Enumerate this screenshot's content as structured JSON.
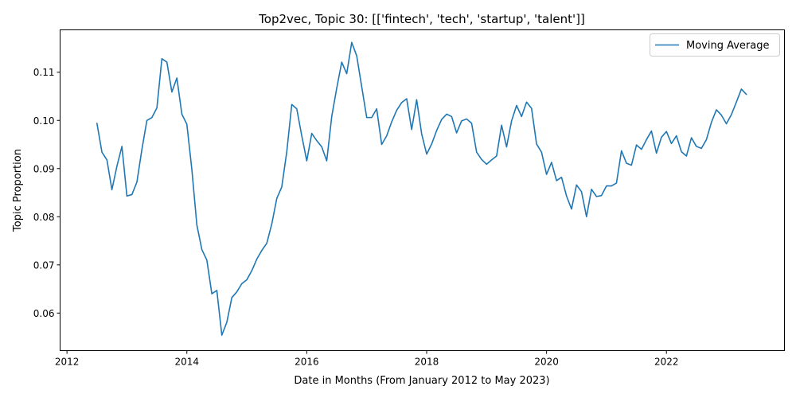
{
  "chart_data": {
    "type": "line",
    "title": "Top2vec, Topic 30: [['fintech', 'tech', 'startup', 'talent']]",
    "xlabel": "Date in Months (From January 2012 to May 2023)",
    "ylabel": "Topic Proportion",
    "xlim": [
      "2011-11-20",
      "2023-12-20"
    ],
    "ylim": [
      0.0522,
      0.1188
    ],
    "x_ticks": [
      "2012",
      "2014",
      "2016",
      "2018",
      "2020",
      "2022"
    ],
    "y_ticks": [
      "0.06",
      "0.07",
      "0.08",
      "0.09",
      "0.10",
      "0.11"
    ],
    "grid": false,
    "legend_position": "top-right",
    "series": [
      {
        "name": "Moving Average",
        "color": "#1f77b4",
        "x": [
          "2012-07",
          "2012-08",
          "2012-09",
          "2012-10",
          "2012-11",
          "2012-12",
          "2013-01",
          "2013-02",
          "2013-03",
          "2013-04",
          "2013-05",
          "2013-06",
          "2013-07",
          "2013-08",
          "2013-09",
          "2013-10",
          "2013-11",
          "2013-12",
          "2014-01",
          "2014-02",
          "2014-03",
          "2014-04",
          "2014-05",
          "2014-06",
          "2014-07",
          "2014-08",
          "2014-09",
          "2014-10",
          "2014-11",
          "2014-12",
          "2015-01",
          "2015-02",
          "2015-03",
          "2015-04",
          "2015-05",
          "2015-06",
          "2015-07",
          "2015-08",
          "2015-09",
          "2015-10",
          "2015-11",
          "2015-12",
          "2016-01",
          "2016-02",
          "2016-03",
          "2016-04",
          "2016-05",
          "2016-06",
          "2016-07",
          "2016-08",
          "2016-09",
          "2016-10",
          "2016-11",
          "2016-12",
          "2017-01",
          "2017-02",
          "2017-03",
          "2017-04",
          "2017-05",
          "2017-06",
          "2017-07",
          "2017-08",
          "2017-09",
          "2017-10",
          "2017-11",
          "2017-12",
          "2018-01",
          "2018-02",
          "2018-03",
          "2018-04",
          "2018-05",
          "2018-06",
          "2018-07",
          "2018-08",
          "2018-09",
          "2018-10",
          "2018-11",
          "2018-12",
          "2019-01",
          "2019-02",
          "2019-03",
          "2019-04",
          "2019-05",
          "2019-06",
          "2019-07",
          "2019-08",
          "2019-09",
          "2019-10",
          "2019-11",
          "2019-12",
          "2020-01",
          "2020-02",
          "2020-03",
          "2020-04",
          "2020-05",
          "2020-06",
          "2020-07",
          "2020-08",
          "2020-09",
          "2020-10",
          "2020-11",
          "2020-12",
          "2021-01",
          "2021-02",
          "2021-03",
          "2021-04",
          "2021-05",
          "2021-06",
          "2021-07",
          "2021-08",
          "2021-09",
          "2021-10",
          "2021-11",
          "2021-12",
          "2022-01",
          "2022-02",
          "2022-03",
          "2022-04",
          "2022-05",
          "2022-06",
          "2022-07",
          "2022-08",
          "2022-09",
          "2022-10",
          "2022-11",
          "2022-12",
          "2023-01",
          "2023-02",
          "2023-03",
          "2023-04",
          "2023-05"
        ],
        "values": [
          0.0994,
          0.0934,
          0.0918,
          0.0856,
          0.0905,
          0.0946,
          0.0843,
          0.0846,
          0.0872,
          0.094,
          0.1,
          0.1006,
          0.1026,
          0.1128,
          0.1121,
          0.1059,
          0.1088,
          0.1013,
          0.0992,
          0.0898,
          0.0783,
          0.0732,
          0.071,
          0.064,
          0.0647,
          0.0554,
          0.0581,
          0.0632,
          0.0644,
          0.0661,
          0.0669,
          0.0688,
          0.0712,
          0.073,
          0.0745,
          0.0785,
          0.0838,
          0.0862,
          0.0935,
          0.1033,
          0.1024,
          0.0968,
          0.0916,
          0.0973,
          0.0958,
          0.0945,
          0.0916,
          0.1008,
          0.1067,
          0.1121,
          0.1097,
          0.1162,
          0.1134,
          0.107,
          0.1006,
          0.1006,
          0.1024,
          0.095,
          0.0968,
          0.0997,
          0.1021,
          0.1037,
          0.1045,
          0.0981,
          0.1043,
          0.0972,
          0.093,
          0.0951,
          0.0979,
          0.1002,
          0.1013,
          0.1008,
          0.0974,
          0.0999,
          0.1003,
          0.0994,
          0.0934,
          0.0919,
          0.0909,
          0.0918,
          0.0926,
          0.099,
          0.0945,
          0.0999,
          0.1031,
          0.1008,
          0.1038,
          0.1025,
          0.0951,
          0.0934,
          0.0888,
          0.0913,
          0.0875,
          0.0882,
          0.0843,
          0.0816,
          0.0866,
          0.0852,
          0.08,
          0.0857,
          0.0842,
          0.0844,
          0.0864,
          0.0864,
          0.087,
          0.0937,
          0.0911,
          0.0907,
          0.0949,
          0.094,
          0.096,
          0.0978,
          0.0932,
          0.0965,
          0.0977,
          0.0952,
          0.0968,
          0.0935,
          0.0926,
          0.0964,
          0.0946,
          0.0942,
          0.096,
          0.0996,
          0.1022,
          0.1011,
          0.0993,
          0.1012,
          0.1038,
          0.1065,
          0.1054
        ]
      }
    ]
  }
}
